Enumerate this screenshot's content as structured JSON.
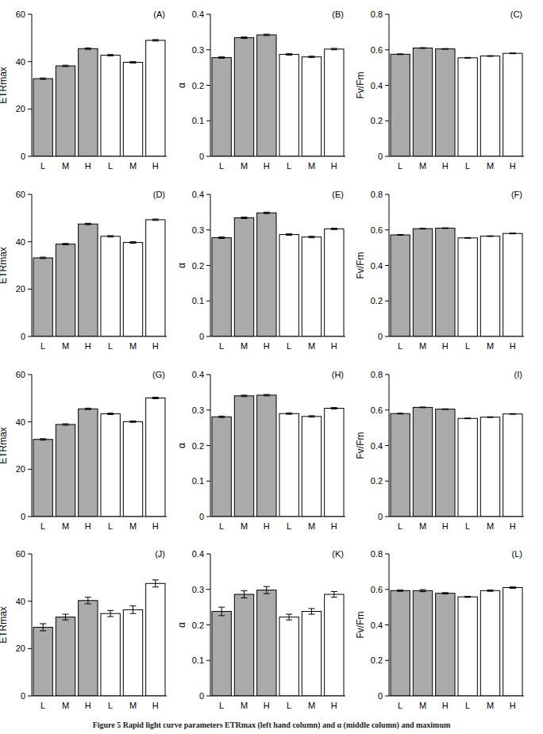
{
  "chart_data": [
    {
      "type": "bar",
      "title": "(A)",
      "y_label": "ETRmax",
      "categories": [
        "L",
        "M",
        "H",
        "L",
        "M",
        "H"
      ],
      "values": [
        32.8,
        38.2,
        45.5,
        42.7,
        39.7,
        49.0
      ],
      "errors": [
        0.3,
        0.3,
        0.3,
        0.3,
        0.3,
        0.3
      ],
      "colors": [
        "#aaaaaa",
        "#aaaaaa",
        "#aaaaaa",
        "#ffffff",
        "#ffffff",
        "#ffffff"
      ],
      "ylim": [
        0,
        60
      ],
      "yticks": [
        0,
        20,
        40,
        60
      ],
      "grid": false
    },
    {
      "type": "bar",
      "title": "(B)",
      "y_label": "α",
      "categories": [
        "L",
        "M",
        "H",
        "L",
        "M",
        "H"
      ],
      "values": [
        0.278,
        0.334,
        0.342,
        0.287,
        0.28,
        0.302
      ],
      "errors": [
        0.002,
        0.002,
        0.002,
        0.002,
        0.002,
        0.002
      ],
      "colors": [
        "#aaaaaa",
        "#aaaaaa",
        "#aaaaaa",
        "#ffffff",
        "#ffffff",
        "#ffffff"
      ],
      "ylim": [
        0,
        0.4
      ],
      "yticks": [
        0,
        0.1,
        0.2,
        0.3,
        0.4
      ],
      "grid": false
    },
    {
      "type": "bar",
      "title": "(C)",
      "y_label": "Fv/Fm",
      "categories": [
        "L",
        "M",
        "H",
        "L",
        "M",
        "H"
      ],
      "values": [
        0.575,
        0.61,
        0.605,
        0.555,
        0.565,
        0.58
      ],
      "errors": [
        0.002,
        0.002,
        0.002,
        0.002,
        0.002,
        0.002
      ],
      "colors": [
        "#aaaaaa",
        "#aaaaaa",
        "#aaaaaa",
        "#ffffff",
        "#ffffff",
        "#ffffff"
      ],
      "ylim": [
        0,
        0.8
      ],
      "yticks": [
        0,
        0.2,
        0.4,
        0.6,
        0.8
      ],
      "grid": false
    },
    {
      "type": "bar",
      "title": "(D)",
      "y_label": "ETRmax",
      "categories": [
        "L",
        "M",
        "H",
        "L",
        "M",
        "H"
      ],
      "values": [
        33.2,
        39.0,
        47.5,
        42.3,
        39.7,
        49.3
      ],
      "errors": [
        0.3,
        0.3,
        0.3,
        0.3,
        0.3,
        0.3
      ],
      "colors": [
        "#aaaaaa",
        "#aaaaaa",
        "#aaaaaa",
        "#ffffff",
        "#ffffff",
        "#ffffff"
      ],
      "ylim": [
        0,
        60
      ],
      "yticks": [
        0,
        20,
        40,
        60
      ],
      "grid": false
    },
    {
      "type": "bar",
      "title": "(E)",
      "y_label": "α",
      "categories": [
        "L",
        "M",
        "H",
        "L",
        "M",
        "H"
      ],
      "values": [
        0.278,
        0.334,
        0.348,
        0.287,
        0.28,
        0.303
      ],
      "errors": [
        0.002,
        0.002,
        0.002,
        0.002,
        0.002,
        0.002
      ],
      "colors": [
        "#aaaaaa",
        "#aaaaaa",
        "#aaaaaa",
        "#ffffff",
        "#ffffff",
        "#ffffff"
      ],
      "ylim": [
        0,
        0.4
      ],
      "yticks": [
        0,
        0.1,
        0.2,
        0.3,
        0.4
      ],
      "grid": false
    },
    {
      "type": "bar",
      "title": "(F)",
      "y_label": "Fv/Fm",
      "categories": [
        "L",
        "M",
        "H",
        "L",
        "M",
        "H"
      ],
      "values": [
        0.572,
        0.607,
        0.61,
        0.555,
        0.565,
        0.58
      ],
      "errors": [
        0.002,
        0.002,
        0.002,
        0.002,
        0.002,
        0.002
      ],
      "colors": [
        "#aaaaaa",
        "#aaaaaa",
        "#aaaaaa",
        "#ffffff",
        "#ffffff",
        "#ffffff"
      ],
      "ylim": [
        0,
        0.8
      ],
      "yticks": [
        0,
        0.2,
        0.4,
        0.6,
        0.8
      ],
      "grid": false
    },
    {
      "type": "bar",
      "title": "(G)",
      "y_label": "ETRmax",
      "categories": [
        "L",
        "M",
        "H",
        "L",
        "M",
        "H"
      ],
      "values": [
        32.6,
        38.9,
        45.5,
        43.4,
        40.1,
        50.1
      ],
      "errors": [
        0.3,
        0.3,
        0.3,
        0.3,
        0.3,
        0.3
      ],
      "colors": [
        "#aaaaaa",
        "#aaaaaa",
        "#aaaaaa",
        "#ffffff",
        "#ffffff",
        "#ffffff"
      ],
      "ylim": [
        0,
        60
      ],
      "yticks": [
        0,
        20,
        40,
        60
      ],
      "grid": false
    },
    {
      "type": "bar",
      "title": "(H)",
      "y_label": "α",
      "categories": [
        "L",
        "M",
        "H",
        "L",
        "M",
        "H"
      ],
      "values": [
        0.281,
        0.34,
        0.342,
        0.29,
        0.282,
        0.305
      ],
      "errors": [
        0.002,
        0.002,
        0.002,
        0.002,
        0.002,
        0.002
      ],
      "colors": [
        "#aaaaaa",
        "#aaaaaa",
        "#aaaaaa",
        "#ffffff",
        "#ffffff",
        "#ffffff"
      ],
      "ylim": [
        0,
        0.4
      ],
      "yticks": [
        0,
        0.1,
        0.2,
        0.3,
        0.4
      ],
      "grid": false
    },
    {
      "type": "bar",
      "title": "(I)",
      "y_label": "Fv/Fm",
      "categories": [
        "L",
        "M",
        "H",
        "L",
        "M",
        "H"
      ],
      "values": [
        0.58,
        0.615,
        0.605,
        0.553,
        0.56,
        0.578
      ],
      "errors": [
        0.002,
        0.002,
        0.002,
        0.002,
        0.002,
        0.002
      ],
      "colors": [
        "#aaaaaa",
        "#aaaaaa",
        "#aaaaaa",
        "#ffffff",
        "#ffffff",
        "#ffffff"
      ],
      "ylim": [
        0,
        0.8
      ],
      "yticks": [
        0,
        0.2,
        0.4,
        0.6,
        0.8
      ],
      "grid": false
    },
    {
      "type": "bar",
      "title": "(J)",
      "y_label": "ETRmax",
      "categories": [
        "L",
        "M",
        "H",
        "L",
        "M",
        "H"
      ],
      "values": [
        29.0,
        33.3,
        40.3,
        34.8,
        36.4,
        47.5
      ],
      "errors": [
        1.5,
        1.2,
        1.4,
        1.3,
        1.6,
        1.5
      ],
      "colors": [
        "#aaaaaa",
        "#aaaaaa",
        "#aaaaaa",
        "#ffffff",
        "#ffffff",
        "#ffffff"
      ],
      "ylim": [
        0,
        60
      ],
      "yticks": [
        0,
        20,
        40,
        60
      ],
      "grid": false
    },
    {
      "type": "bar",
      "title": "(K)",
      "y_label": "α",
      "categories": [
        "L",
        "M",
        "H",
        "L",
        "M",
        "H"
      ],
      "values": [
        0.238,
        0.286,
        0.298,
        0.222,
        0.238,
        0.286
      ],
      "errors": [
        0.012,
        0.01,
        0.01,
        0.008,
        0.008,
        0.008
      ],
      "colors": [
        "#aaaaaa",
        "#aaaaaa",
        "#aaaaaa",
        "#ffffff",
        "#ffffff",
        "#ffffff"
      ],
      "ylim": [
        0,
        0.4
      ],
      "yticks": [
        0,
        0.1,
        0.2,
        0.3,
        0.4
      ],
      "grid": false
    },
    {
      "type": "bar",
      "title": "(L)",
      "y_label": "Fv/Fm",
      "categories": [
        "L",
        "M",
        "H",
        "L",
        "M",
        "H"
      ],
      "values": [
        0.593,
        0.593,
        0.578,
        0.558,
        0.593,
        0.61
      ],
      "errors": [
        0.004,
        0.006,
        0.004,
        0.003,
        0.004,
        0.004
      ],
      "colors": [
        "#aaaaaa",
        "#aaaaaa",
        "#aaaaaa",
        "#ffffff",
        "#ffffff",
        "#ffffff"
      ],
      "ylim": [
        0,
        0.8
      ],
      "yticks": [
        0,
        0.2,
        0.4,
        0.6,
        0.8
      ],
      "grid": false
    }
  ],
  "caption": "Figure 5 Rapid light curve parameters ETRmax (left hand column) and α (middle column) and maximum"
}
